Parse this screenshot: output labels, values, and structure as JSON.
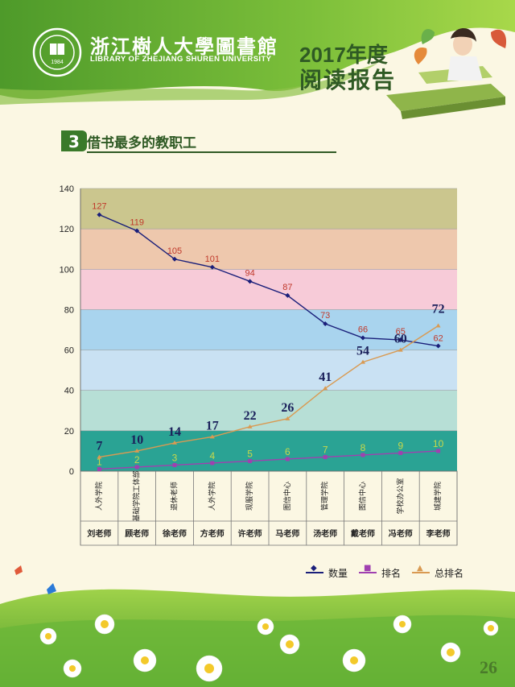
{
  "header": {
    "library_cn": "浙江樹人大學圖書館",
    "library_en": "LIBRARY OF ZHEJIANG SHUREN UNIVERSITY",
    "logo_year": "1984",
    "report_year": "2017年度",
    "report_title": "阅读报告"
  },
  "section": {
    "number": "3",
    "title": "借书最多的教职工"
  },
  "chart_data": {
    "type": "line",
    "ylim": [
      0,
      140
    ],
    "yticks": [
      0,
      20,
      40,
      60,
      80,
      100,
      120,
      140
    ],
    "bands": [
      {
        "from": 0,
        "to": 20,
        "color": "#2aa394"
      },
      {
        "from": 20,
        "to": 40,
        "color": "#b7dfd6"
      },
      {
        "from": 40,
        "to": 60,
        "color": "#c9e1f3"
      },
      {
        "from": 60,
        "to": 80,
        "color": "#a9d4ee"
      },
      {
        "from": 80,
        "to": 100,
        "color": "#f7cbd8"
      },
      {
        "from": 100,
        "to": 120,
        "color": "#eec8ad"
      },
      {
        "from": 120,
        "to": 140,
        "color": "#cbc68e"
      }
    ],
    "categories": [
      "人外学院",
      "基础学院工体部",
      "退休老师",
      "人外学院",
      "现服学院",
      "图信中心",
      "管理学院",
      "图信中心",
      "学校办公室",
      "城建学院"
    ],
    "teachers": [
      "刘老师",
      "顾老师",
      "徐老师",
      "方老师",
      "许老师",
      "马老师",
      "汤老师",
      "戴老师",
      "冯老师",
      "李老师"
    ],
    "series": [
      {
        "name": "数量",
        "color": "#1a1f7a",
        "values": [
          127,
          119,
          105,
          101,
          94,
          87,
          73,
          66,
          65,
          62
        ],
        "label_color": "#c0392b"
      },
      {
        "name": "排名",
        "color": "#a040b0",
        "values": [
          1,
          2,
          3,
          4,
          5,
          6,
          7,
          8,
          9,
          10
        ],
        "label_color": "#c8d84a"
      },
      {
        "name": "总排名",
        "color": "#d99a52",
        "values": [
          7,
          10,
          14,
          17,
          22,
          26,
          41,
          54,
          60,
          72
        ],
        "label_color": "#1a1f5a"
      }
    ]
  },
  "page_number": "26"
}
